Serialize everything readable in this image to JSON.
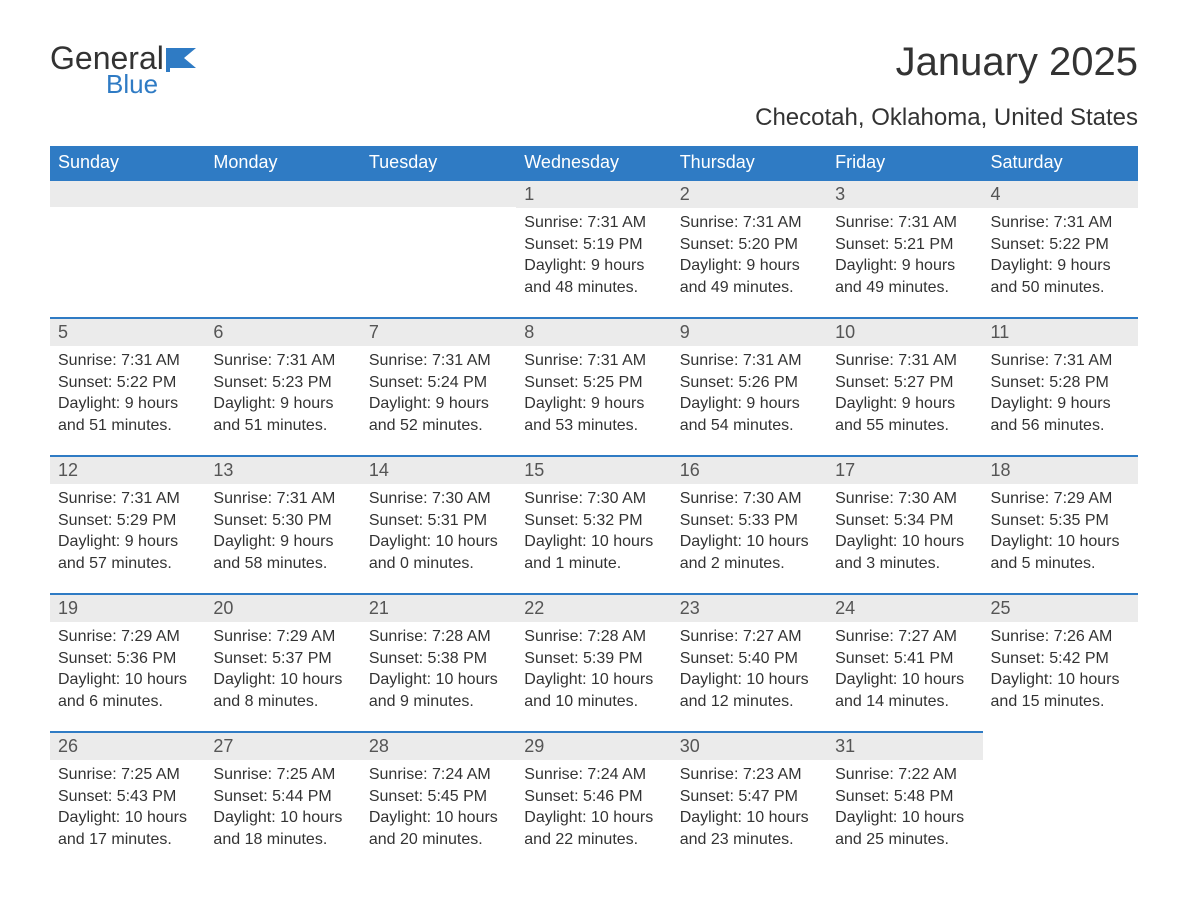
{
  "logo": {
    "word1": "General",
    "word2": "Blue"
  },
  "title": "January 2025",
  "subtitle": "Checotah, Oklahoma, United States",
  "colors": {
    "header_bg": "#2f7bc4",
    "header_text": "#ffffff",
    "daynum_bg": "#ebebeb",
    "daynum_border_top": "#2f7bc4",
    "body_text": "#333333",
    "page_bg": "#ffffff",
    "logo_accent": "#2f7bc4"
  },
  "typography": {
    "title_fontsize_pt": 30,
    "subtitle_fontsize_pt": 18,
    "dayheader_fontsize_pt": 14,
    "daynum_fontsize_pt": 14,
    "body_fontsize_pt": 12,
    "font_family": "Arial"
  },
  "calendar": {
    "type": "table",
    "columns": [
      "Sunday",
      "Monday",
      "Tuesday",
      "Wednesday",
      "Thursday",
      "Friday",
      "Saturday"
    ],
    "first_day_column_index": 3,
    "num_days": 31,
    "labels": {
      "sunrise": "Sunrise:",
      "sunset": "Sunset:",
      "daylight": "Daylight:"
    },
    "days": [
      {
        "n": 1,
        "sunrise": "7:31 AM",
        "sunset": "5:19 PM",
        "daylight": "9 hours and 48 minutes."
      },
      {
        "n": 2,
        "sunrise": "7:31 AM",
        "sunset": "5:20 PM",
        "daylight": "9 hours and 49 minutes."
      },
      {
        "n": 3,
        "sunrise": "7:31 AM",
        "sunset": "5:21 PM",
        "daylight": "9 hours and 49 minutes."
      },
      {
        "n": 4,
        "sunrise": "7:31 AM",
        "sunset": "5:22 PM",
        "daylight": "9 hours and 50 minutes."
      },
      {
        "n": 5,
        "sunrise": "7:31 AM",
        "sunset": "5:22 PM",
        "daylight": "9 hours and 51 minutes."
      },
      {
        "n": 6,
        "sunrise": "7:31 AM",
        "sunset": "5:23 PM",
        "daylight": "9 hours and 51 minutes."
      },
      {
        "n": 7,
        "sunrise": "7:31 AM",
        "sunset": "5:24 PM",
        "daylight": "9 hours and 52 minutes."
      },
      {
        "n": 8,
        "sunrise": "7:31 AM",
        "sunset": "5:25 PM",
        "daylight": "9 hours and 53 minutes."
      },
      {
        "n": 9,
        "sunrise": "7:31 AM",
        "sunset": "5:26 PM",
        "daylight": "9 hours and 54 minutes."
      },
      {
        "n": 10,
        "sunrise": "7:31 AM",
        "sunset": "5:27 PM",
        "daylight": "9 hours and 55 minutes."
      },
      {
        "n": 11,
        "sunrise": "7:31 AM",
        "sunset": "5:28 PM",
        "daylight": "9 hours and 56 minutes."
      },
      {
        "n": 12,
        "sunrise": "7:31 AM",
        "sunset": "5:29 PM",
        "daylight": "9 hours and 57 minutes."
      },
      {
        "n": 13,
        "sunrise": "7:31 AM",
        "sunset": "5:30 PM",
        "daylight": "9 hours and 58 minutes."
      },
      {
        "n": 14,
        "sunrise": "7:30 AM",
        "sunset": "5:31 PM",
        "daylight": "10 hours and 0 minutes."
      },
      {
        "n": 15,
        "sunrise": "7:30 AM",
        "sunset": "5:32 PM",
        "daylight": "10 hours and 1 minute."
      },
      {
        "n": 16,
        "sunrise": "7:30 AM",
        "sunset": "5:33 PM",
        "daylight": "10 hours and 2 minutes."
      },
      {
        "n": 17,
        "sunrise": "7:30 AM",
        "sunset": "5:34 PM",
        "daylight": "10 hours and 3 minutes."
      },
      {
        "n": 18,
        "sunrise": "7:29 AM",
        "sunset": "5:35 PM",
        "daylight": "10 hours and 5 minutes."
      },
      {
        "n": 19,
        "sunrise": "7:29 AM",
        "sunset": "5:36 PM",
        "daylight": "10 hours and 6 minutes."
      },
      {
        "n": 20,
        "sunrise": "7:29 AM",
        "sunset": "5:37 PM",
        "daylight": "10 hours and 8 minutes."
      },
      {
        "n": 21,
        "sunrise": "7:28 AM",
        "sunset": "5:38 PM",
        "daylight": "10 hours and 9 minutes."
      },
      {
        "n": 22,
        "sunrise": "7:28 AM",
        "sunset": "5:39 PM",
        "daylight": "10 hours and 10 minutes."
      },
      {
        "n": 23,
        "sunrise": "7:27 AM",
        "sunset": "5:40 PM",
        "daylight": "10 hours and 12 minutes."
      },
      {
        "n": 24,
        "sunrise": "7:27 AM",
        "sunset": "5:41 PM",
        "daylight": "10 hours and 14 minutes."
      },
      {
        "n": 25,
        "sunrise": "7:26 AM",
        "sunset": "5:42 PM",
        "daylight": "10 hours and 15 minutes."
      },
      {
        "n": 26,
        "sunrise": "7:25 AM",
        "sunset": "5:43 PM",
        "daylight": "10 hours and 17 minutes."
      },
      {
        "n": 27,
        "sunrise": "7:25 AM",
        "sunset": "5:44 PM",
        "daylight": "10 hours and 18 minutes."
      },
      {
        "n": 28,
        "sunrise": "7:24 AM",
        "sunset": "5:45 PM",
        "daylight": "10 hours and 20 minutes."
      },
      {
        "n": 29,
        "sunrise": "7:24 AM",
        "sunset": "5:46 PM",
        "daylight": "10 hours and 22 minutes."
      },
      {
        "n": 30,
        "sunrise": "7:23 AM",
        "sunset": "5:47 PM",
        "daylight": "10 hours and 23 minutes."
      },
      {
        "n": 31,
        "sunrise": "7:22 AM",
        "sunset": "5:48 PM",
        "daylight": "10 hours and 25 minutes."
      }
    ]
  }
}
